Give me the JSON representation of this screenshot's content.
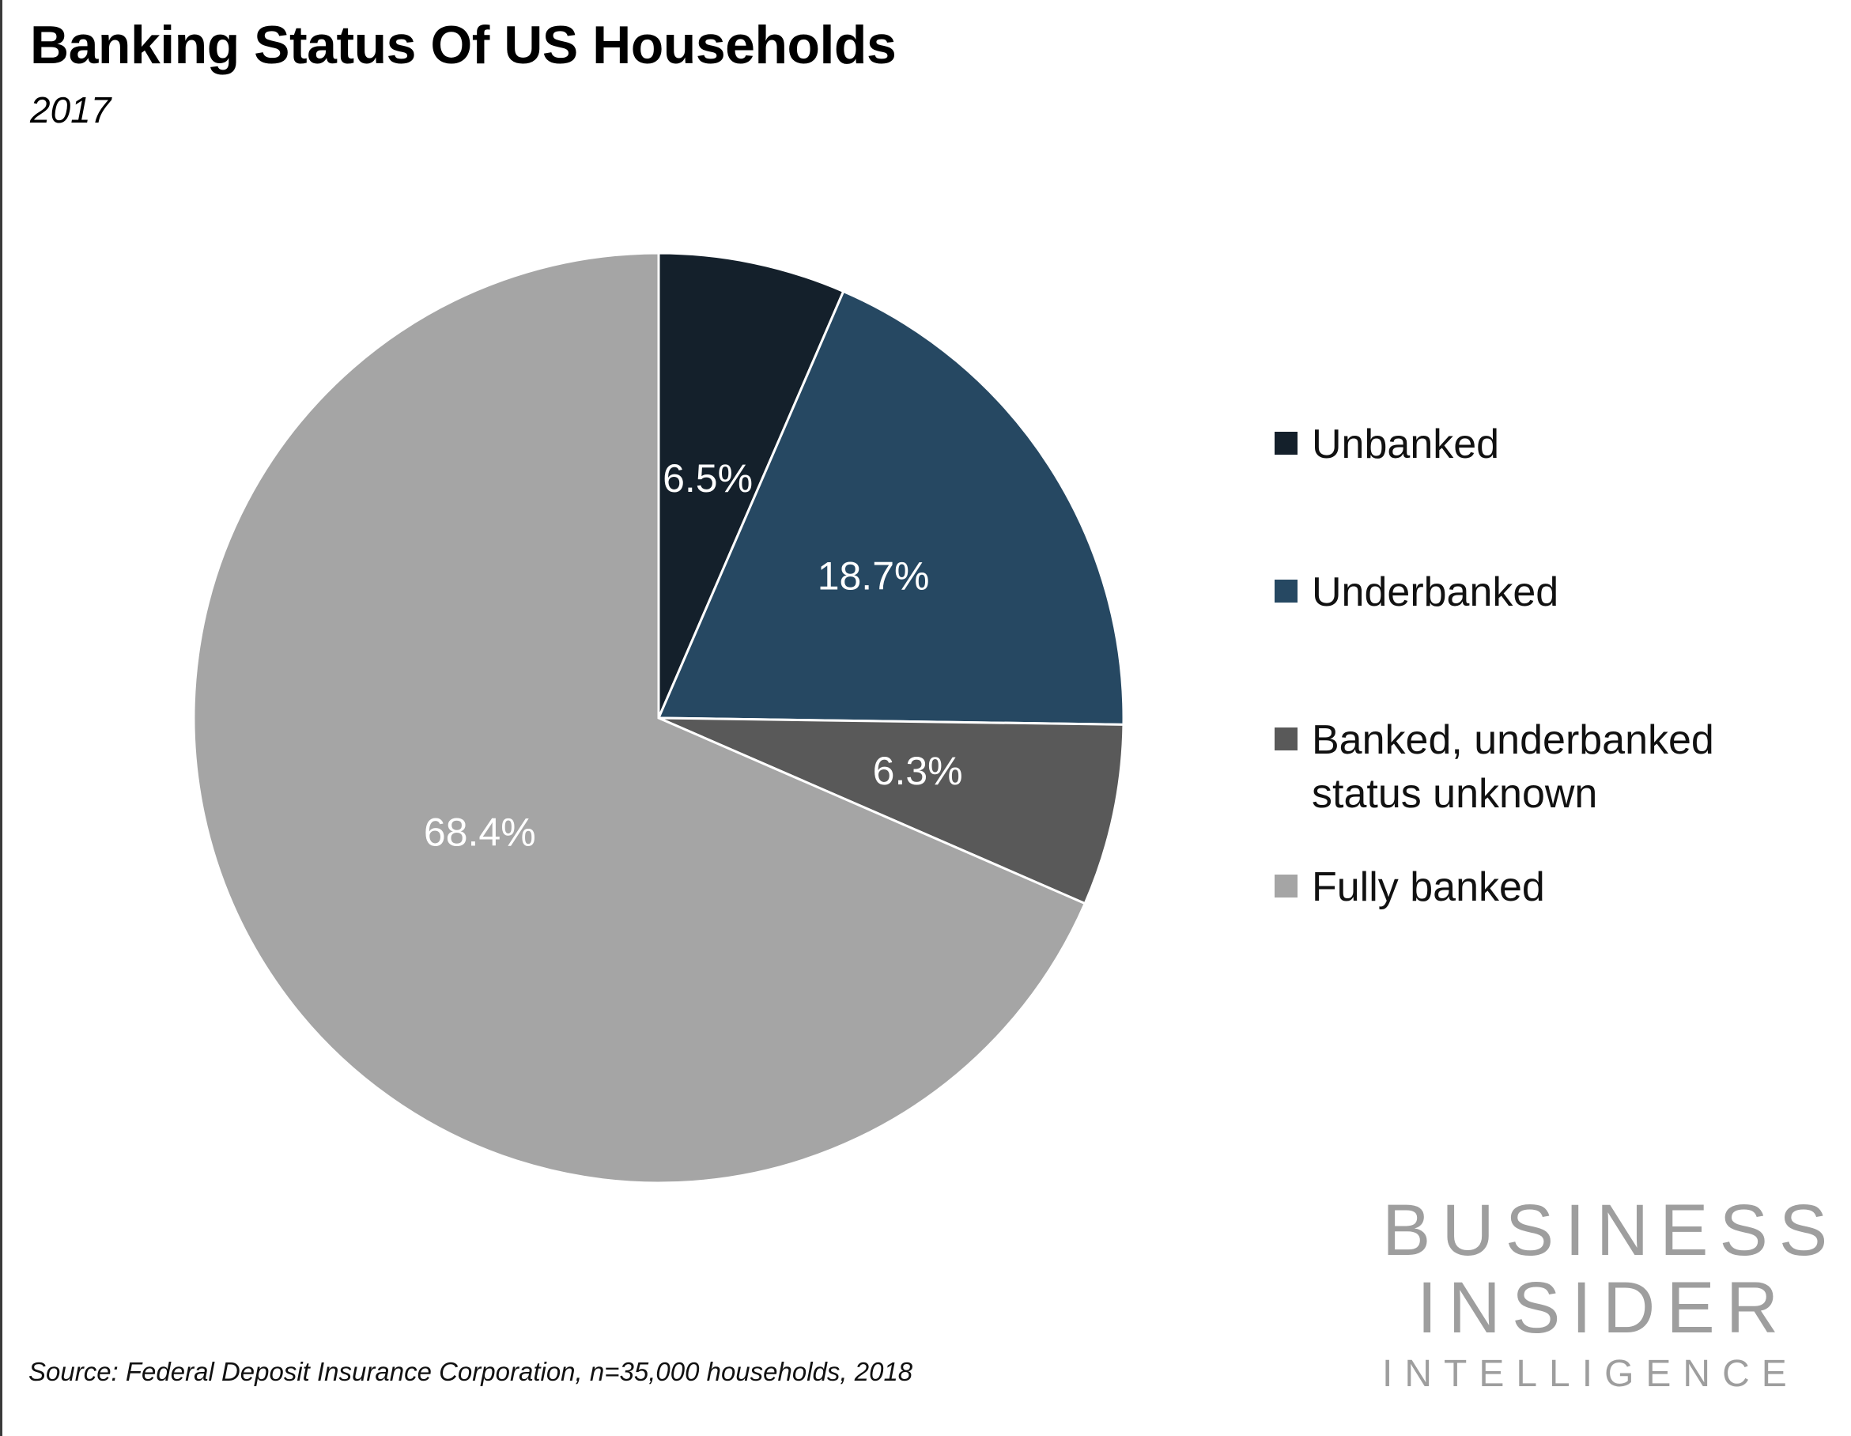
{
  "title": "Banking Status Of US Households",
  "subtitle": "2017",
  "source": "Source: Federal Deposit Insurance Corporation, n=35,000 households, 2018",
  "logo": {
    "line1": "BUSINESS",
    "line2": "INSIDER",
    "line3": "INTELLIGENCE"
  },
  "chart_data": {
    "type": "pie",
    "title": "Banking Status Of US Households",
    "subtitle": "2017",
    "legend_position": "right",
    "start": "12 o'clock, clockwise",
    "slices": [
      {
        "label": "Unbanked",
        "value": 6.5,
        "display": "6.5%",
        "color": "#14202b"
      },
      {
        "label": "Underbanked",
        "value": 18.7,
        "display": "18.7%",
        "color": "#264862"
      },
      {
        "label": "Banked, underbanked status unknown",
        "value": 6.3,
        "display": "6.3%",
        "color": "#595959"
      },
      {
        "label": "Fully banked",
        "value": 68.4,
        "display": "68.4%",
        "color": "#a5a5a5"
      }
    ]
  },
  "legend": {
    "items": [
      {
        "lines": [
          "Unbanked"
        ],
        "color": "#14202b"
      },
      {
        "lines": [
          "Underbanked"
        ],
        "color": "#264862"
      },
      {
        "lines": [
          "Banked, underbanked",
          "status unknown"
        ],
        "color": "#595959"
      },
      {
        "lines": [
          "Fully banked"
        ],
        "color": "#a5a5a5"
      }
    ]
  }
}
